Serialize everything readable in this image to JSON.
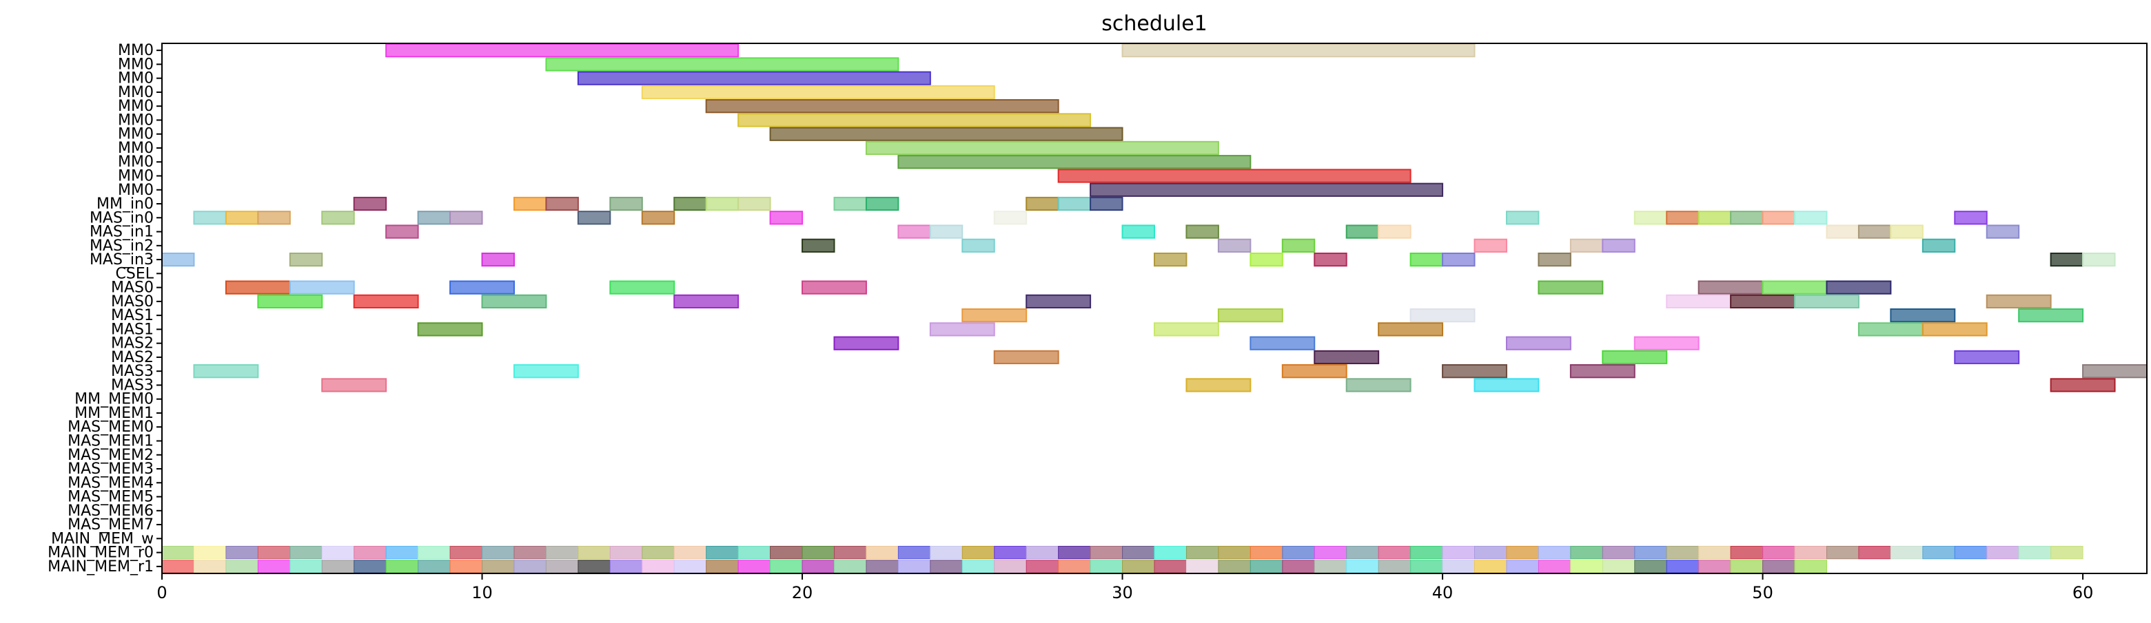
{
  "chart_data": {
    "type": "gantt",
    "title": "schedule1",
    "xlabel": "",
    "ylabel": "",
    "xlim": [
      0,
      62
    ],
    "x_ticks": [
      0,
      10,
      20,
      30,
      40,
      50,
      60
    ],
    "rows": [
      "MM0",
      "MM0",
      "MM0",
      "MM0",
      "MM0",
      "MM0",
      "MM0",
      "MM0",
      "MM0",
      "MM0",
      "MM0",
      "MM_in0",
      "MAS_in0",
      "MAS_in1",
      "MAS_in2",
      "MAS_in3",
      "CSEL",
      "MAS0",
      "MAS0",
      "MAS1",
      "MAS1",
      "MAS2",
      "MAS2",
      "MAS3",
      "MAS3",
      "MM_MEM0",
      "MM_MEM1",
      "MAS_MEM0",
      "MAS_MEM1",
      "MAS_MEM2",
      "MAS_MEM3",
      "MAS_MEM4",
      "MAS_MEM5",
      "MAS_MEM6",
      "MAS_MEM7",
      "MAIN_MEM_w",
      "MAIN_MEM_r0",
      "MAIN_MEM_r1"
    ],
    "bars": [
      {
        "row": 0,
        "start": 7,
        "end": 18,
        "color": "#f03ce8"
      },
      {
        "row": 0,
        "start": 30,
        "end": 41,
        "color": "#d8ccaa"
      },
      {
        "row": 1,
        "start": 12,
        "end": 23,
        "color": "#5ee04c"
      },
      {
        "row": 2,
        "start": 13,
        "end": 24,
        "color": "#4a33cc"
      },
      {
        "row": 3,
        "start": 15,
        "end": 26,
        "color": "#f2d55c"
      },
      {
        "row": 4,
        "start": 17,
        "end": 28,
        "color": "#8a5a2b"
      },
      {
        "row": 5,
        "start": 18,
        "end": 29,
        "color": "#d9c131"
      },
      {
        "row": 6,
        "start": 19,
        "end": 30,
        "color": "#6e5a2a"
      },
      {
        "row": 7,
        "start": 22,
        "end": 33,
        "color": "#8fd45e"
      },
      {
        "row": 8,
        "start": 23,
        "end": 34,
        "color": "#5a9e3e"
      },
      {
        "row": 9,
        "start": 28,
        "end": 39,
        "color": "#e02a2a"
      },
      {
        "row": 10,
        "start": 29,
        "end": 40,
        "color": "#3e2a5e"
      },
      {
        "row": 11,
        "start": 6,
        "end": 7,
        "color": "#8e2a5e"
      },
      {
        "row": 11,
        "start": 11,
        "end": 12,
        "color": "#f59a2a"
      },
      {
        "row": 11,
        "start": 12,
        "end": 13,
        "color": "#9e4a4a"
      },
      {
        "row": 11,
        "start": 14,
        "end": 15,
        "color": "#7aa67a"
      },
      {
        "row": 11,
        "start": 16,
        "end": 17,
        "color": "#4e7a2e"
      },
      {
        "row": 11,
        "start": 17,
        "end": 18,
        "color": "#b8e07a"
      },
      {
        "row": 11,
        "start": 18,
        "end": 19,
        "color": "#c8d88a"
      },
      {
        "row": 11,
        "start": 21,
        "end": 22,
        "color": "#7ad09a"
      },
      {
        "row": 11,
        "start": 22,
        "end": 23,
        "color": "#2ab06a"
      },
      {
        "row": 11,
        "start": 27,
        "end": 28,
        "color": "#a88a2a"
      },
      {
        "row": 11,
        "start": 28,
        "end": 29,
        "color": "#6ac8c0"
      },
      {
        "row": 11,
        "start": 29,
        "end": 30,
        "color": "#2e3e7a"
      },
      {
        "row": 12,
        "start": 1,
        "end": 2,
        "color": "#8ad6d0"
      },
      {
        "row": 12,
        "start": 2,
        "end": 3,
        "color": "#eab83a"
      },
      {
        "row": 12,
        "start": 3,
        "end": 4,
        "color": "#d8a45a"
      },
      {
        "row": 12,
        "start": 5,
        "end": 6,
        "color": "#a0c878"
      },
      {
        "row": 12,
        "start": 8,
        "end": 9,
        "color": "#7aa0b0"
      },
      {
        "row": 12,
        "start": 9,
        "end": 10,
        "color": "#a88ab8"
      },
      {
        "row": 12,
        "start": 13,
        "end": 14,
        "color": "#4a5e7a"
      },
      {
        "row": 12,
        "start": 15,
        "end": 16,
        "color": "#b8782a"
      },
      {
        "row": 12,
        "start": 19,
        "end": 20,
        "color": "#f03ce8"
      },
      {
        "row": 12,
        "start": 26,
        "end": 27,
        "color": "#eef0e4"
      },
      {
        "row": 12,
        "start": 42,
        "end": 43,
        "color": "#7ad8c8"
      },
      {
        "row": 12,
        "start": 46,
        "end": 47,
        "color": "#d8f0a8"
      },
      {
        "row": 12,
        "start": 47,
        "end": 48,
        "color": "#d8743a"
      },
      {
        "row": 12,
        "start": 48,
        "end": 49,
        "color": "#b8e050"
      },
      {
        "row": 12,
        "start": 49,
        "end": 50,
        "color": "#7ab87a"
      },
      {
        "row": 12,
        "start": 50,
        "end": 51,
        "color": "#f89a7a"
      },
      {
        "row": 12,
        "start": 51,
        "end": 52,
        "color": "#a0f0e0"
      },
      {
        "row": 12,
        "start": 56,
        "end": 57,
        "color": "#8a3ae8"
      },
      {
        "row": 13,
        "start": 7,
        "end": 8,
        "color": "#b84a8a"
      },
      {
        "row": 13,
        "start": 23,
        "end": 24,
        "color": "#e878c8"
      },
      {
        "row": 13,
        "start": 24,
        "end": 25,
        "color": "#b8dce0"
      },
      {
        "row": 13,
        "start": 30,
        "end": 31,
        "color": "#2ae8c8"
      },
      {
        "row": 13,
        "start": 32,
        "end": 33,
        "color": "#6a8a3e"
      },
      {
        "row": 13,
        "start": 37,
        "end": 38,
        "color": "#3aa85e"
      },
      {
        "row": 13,
        "start": 38,
        "end": 39,
        "color": "#f8d8b0"
      },
      {
        "row": 13,
        "start": 52,
        "end": 53,
        "color": "#f0e4c8"
      },
      {
        "row": 13,
        "start": 53,
        "end": 54,
        "color": "#a8987a"
      },
      {
        "row": 13,
        "start": 54,
        "end": 55,
        "color": "#e8e8a0"
      },
      {
        "row": 13,
        "start": 57,
        "end": 58,
        "color": "#8a8ad0"
      },
      {
        "row": 14,
        "start": 20,
        "end": 21,
        "color": "#2a3a1a"
      },
      {
        "row": 14,
        "start": 25,
        "end": 26,
        "color": "#7ad0d0"
      },
      {
        "row": 14,
        "start": 33,
        "end": 34,
        "color": "#a898c0"
      },
      {
        "row": 14,
        "start": 35,
        "end": 36,
        "color": "#6ad03a"
      },
      {
        "row": 14,
        "start": 41,
        "end": 42,
        "color": "#f888a0"
      },
      {
        "row": 14,
        "start": 44,
        "end": 45,
        "color": "#d8c0a8"
      },
      {
        "row": 14,
        "start": 45,
        "end": 46,
        "color": "#a888d8"
      },
      {
        "row": 14,
        "start": 55,
        "end": 56,
        "color": "#3ab0a8"
      },
      {
        "row": 15,
        "start": 0,
        "end": 1,
        "color": "#8ab8e8"
      },
      {
        "row": 15,
        "start": 4,
        "end": 5,
        "color": "#a0b078"
      },
      {
        "row": 15,
        "start": 10,
        "end": 11,
        "color": "#d830e0"
      },
      {
        "row": 15,
        "start": 31,
        "end": 32,
        "color": "#b09a3a"
      },
      {
        "row": 15,
        "start": 34,
        "end": 35,
        "color": "#a8f03a"
      },
      {
        "row": 15,
        "start": 36,
        "end": 37,
        "color": "#b02a5a"
      },
      {
        "row": 15,
        "start": 39,
        "end": 40,
        "color": "#50e03a"
      },
      {
        "row": 15,
        "start": 40,
        "end": 41,
        "color": "#7a7ad8"
      },
      {
        "row": 15,
        "start": 43,
        "end": 44,
        "color": "#8a7a5a"
      },
      {
        "row": 15,
        "start": 59,
        "end": 60,
        "color": "#1e2e1e"
      },
      {
        "row": 15,
        "start": 60,
        "end": 61,
        "color": "#c8e8c8"
      },
      {
        "row": 17,
        "start": 2,
        "end": 4,
        "color": "#d84a1a"
      },
      {
        "row": 17,
        "start": 4,
        "end": 6,
        "color": "#8ac0f0"
      },
      {
        "row": 17,
        "start": 9,
        "end": 11,
        "color": "#3a6ae0"
      },
      {
        "row": 17,
        "start": 14,
        "end": 16,
        "color": "#3ae05a"
      },
      {
        "row": 17,
        "start": 20,
        "end": 22,
        "color": "#d0408a"
      },
      {
        "row": 17,
        "start": 43,
        "end": 45,
        "color": "#5ab83a"
      },
      {
        "row": 17,
        "start": 48,
        "end": 50,
        "color": "#8a5a6a"
      },
      {
        "row": 17,
        "start": 50,
        "end": 52,
        "color": "#6ae04a"
      },
      {
        "row": 17,
        "start": 52,
        "end": 54,
        "color": "#2e2a6a"
      },
      {
        "row": 18,
        "start": 3,
        "end": 5,
        "color": "#4ae03a"
      },
      {
        "row": 18,
        "start": 6,
        "end": 8,
        "color": "#ea2a2a"
      },
      {
        "row": 18,
        "start": 10,
        "end": 12,
        "color": "#5ab87a"
      },
      {
        "row": 18,
        "start": 16,
        "end": 18,
        "color": "#9a2ac8"
      },
      {
        "row": 18,
        "start": 27,
        "end": 29,
        "color": "#3e2a6a"
      },
      {
        "row": 18,
        "start": 47,
        "end": 49,
        "color": "#f0c8f0"
      },
      {
        "row": 18,
        "start": 49,
        "end": 51,
        "color": "#5a1e2a"
      },
      {
        "row": 18,
        "start": 51,
        "end": 53,
        "color": "#7ac8a8"
      },
      {
        "row": 18,
        "start": 57,
        "end": 59,
        "color": "#b8905a"
      },
      {
        "row": 19,
        "start": 25,
        "end": 27,
        "color": "#e8983a"
      },
      {
        "row": 19,
        "start": 33,
        "end": 35,
        "color": "#a8d03a"
      },
      {
        "row": 19,
        "start": 39,
        "end": 41,
        "color": "#dce0ea"
      },
      {
        "row": 19,
        "start": 54,
        "end": 56,
        "color": "#1e5a8a"
      },
      {
        "row": 19,
        "start": 58,
        "end": 60,
        "color": "#3ac86a"
      },
      {
        "row": 20,
        "start": 8,
        "end": 10,
        "color": "#5a9a2a"
      },
      {
        "row": 20,
        "start": 24,
        "end": 26,
        "color": "#c898e0"
      },
      {
        "row": 20,
        "start": 31,
        "end": 33,
        "color": "#c8e86a"
      },
      {
        "row": 20,
        "start": 38,
        "end": 40,
        "color": "#b87a1e"
      },
      {
        "row": 20,
        "start": 53,
        "end": 55,
        "color": "#6ac87a"
      },
      {
        "row": 20,
        "start": 55,
        "end": 57,
        "color": "#e0982a"
      },
      {
        "row": 21,
        "start": 21,
        "end": 23,
        "color": "#8a1ec8"
      },
      {
        "row": 21,
        "start": 34,
        "end": 36,
        "color": "#4a7ad8"
      },
      {
        "row": 21,
        "start": 42,
        "end": 44,
        "color": "#a878d8"
      },
      {
        "row": 21,
        "start": 46,
        "end": 48,
        "color": "#f878e8"
      },
      {
        "row": 22,
        "start": 26,
        "end": 28,
        "color": "#c8783a"
      },
      {
        "row": 22,
        "start": 36,
        "end": 38,
        "color": "#4a1e4a"
      },
      {
        "row": 22,
        "start": 45,
        "end": 47,
        "color": "#4ad83a"
      },
      {
        "row": 22,
        "start": 56,
        "end": 58,
        "color": "#6a3ae0"
      },
      {
        "row": 23,
        "start": 1,
        "end": 3,
        "color": "#7ad8c0"
      },
      {
        "row": 23,
        "start": 11,
        "end": 13,
        "color": "#4af0e0"
      },
      {
        "row": 23,
        "start": 35,
        "end": 37,
        "color": "#d87a1e"
      },
      {
        "row": 23,
        "start": 40,
        "end": 42,
        "color": "#6a4a3e"
      },
      {
        "row": 23,
        "start": 44,
        "end": 46,
        "color": "#8a3a6a"
      },
      {
        "row": 23,
        "start": 60,
        "end": 62,
        "color": "#8a7a7a"
      },
      {
        "row": 24,
        "start": 5,
        "end": 7,
        "color": "#e8708a"
      },
      {
        "row": 24,
        "start": 32,
        "end": 34,
        "color": "#d8b02a"
      },
      {
        "row": 24,
        "start": 37,
        "end": 39,
        "color": "#7ab08a"
      },
      {
        "row": 24,
        "start": 41,
        "end": 43,
        "color": "#3ae0f0"
      },
      {
        "row": 24,
        "start": 59,
        "end": 61,
        "color": "#a81e2a"
      }
    ],
    "mem_rows": [
      {
        "row": 36,
        "colors": [
          "#a8d878",
          "#f8f0a0",
          "#8a7ab8",
          "#d05a6a",
          "#7ab09a",
          "#d8d0f8",
          "#e07aa8",
          "#5ab8f8",
          "#a0f0c8",
          "#c84a5a",
          "#7aa0a8",
          "#a86a7a",
          "#a8a8a0",
          "#c8c87a",
          "#d8a8c8",
          "#a8b86a",
          "#f0c8a8",
          "#3aa0a0",
          "#6ae0c0",
          "#8a4a4a",
          "#5a8a3a",
          "#a84a5a",
          "#f0c898",
          "#5a5ae0",
          "#c8c8f0",
          "#c0a02a",
          "#6a3ae0",
          "#b8a0e0",
          "#5a2aa0",
          "#a86a7a",
          "#6a5a8a",
          "#4af0d8",
          "#8aa05a",
          "#a89a3a",
          "#f0783a",
          "#5a7ad0",
          "#e050f0",
          "#7aa0a8",
          "#d85a8a",
          "#3ad07a",
          "#c8a8f0",
          "#a89ae0",
          "#d8983a",
          "#a0b0f8",
          "#5ab87a",
          "#a07ab0",
          "#6a8ad8",
          "#a8a878",
          "#e8d0a0",
          "#c83a4a",
          "#e050a0",
          "#e8a8a8",
          "#a88a7a",
          "#c83a5a",
          "#c8e0d0",
          "#5aa8d8",
          "#4a8af0",
          "#c8a0e0",
          "#a8e8c8",
          "#c8e07a"
        ]
      },
      {
        "row": 37,
        "colors": [
          "#f05a5a",
          "#f0d8a8",
          "#a8d8a0",
          "#f040f0",
          "#78e8c8",
          "#a0a0a0",
          "#3a5a8a",
          "#5ad84a",
          "#5aa8a0",
          "#f8784a",
          "#a8986a",
          "#a098c8",
          "#a8a0a8",
          "#3a3a3a",
          "#9a7ae8",
          "#f0b8e8",
          "#d0c8f8",
          "#a87a4a",
          "#f038e8",
          "#5ae088",
          "#b838b8",
          "#8ad0a0",
          "#7a5a8a",
          "#a8a0f0",
          "#7a5a8a",
          "#7ae8d8",
          "#d8a8c8",
          "#c83a6a",
          "#f0785a",
          "#6ae0b0",
          "#a0a048",
          "#b83a5a",
          "#e8d0e0",
          "#8a9a5a",
          "#4aa890",
          "#a8407a",
          "#a8b8a8",
          "#70e8f8",
          "#9aa8a0",
          "#4ad890",
          "#c8c8f0",
          "#f0c84a",
          "#a0a0f8",
          "#f050e0",
          "#c8f878",
          "#c8e8a0",
          "#507a5a",
          "#4a4af0",
          "#d868a8",
          "#a0d85a",
          "#8a5a8a",
          "#a0e058"
        ]
      }
    ]
  }
}
